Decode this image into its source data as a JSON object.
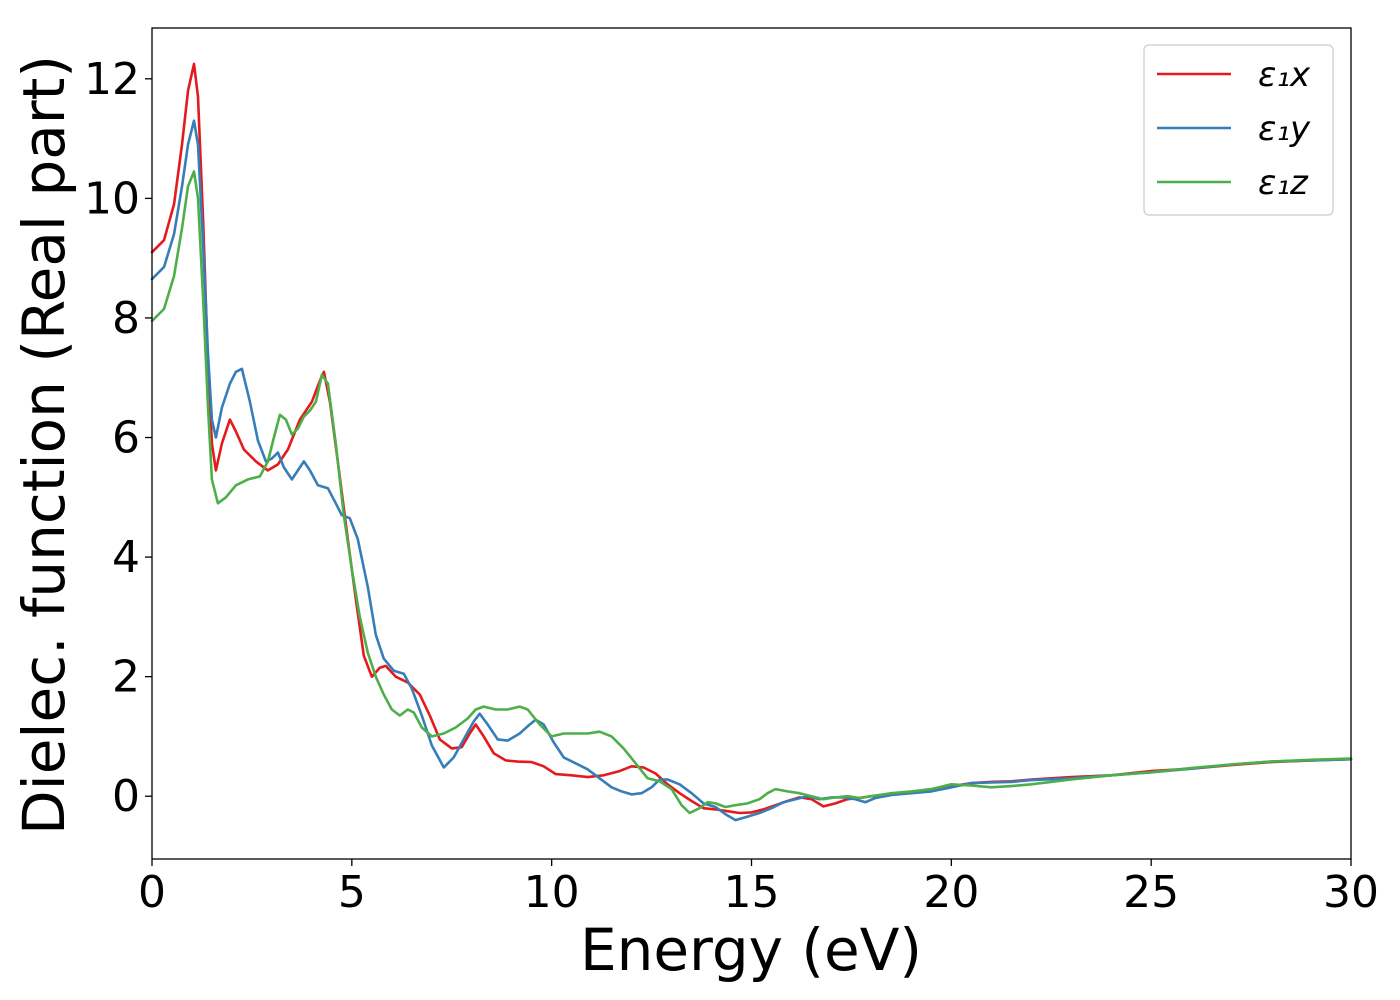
{
  "chart_data": {
    "type": "line",
    "xlabel": "Energy (eV)",
    "ylabel": "Dielec. function (Real part)",
    "xlim": [
      0,
      30
    ],
    "ylim": [
      -1.05,
      12.85
    ],
    "xticks": [
      0,
      5,
      10,
      15,
      20,
      25,
      30
    ],
    "yticks": [
      0,
      2,
      4,
      6,
      8,
      10,
      12
    ],
    "grid": false,
    "legend_position": "top-right",
    "series": [
      {
        "name": "ε₁x",
        "color": "#e41a1c",
        "points": [
          [
            0,
            9.1
          ],
          [
            0.3,
            9.3
          ],
          [
            0.55,
            9.9
          ],
          [
            0.75,
            10.9
          ],
          [
            0.9,
            11.8
          ],
          [
            1.05,
            12.25
          ],
          [
            1.15,
            11.7
          ],
          [
            1.28,
            9.6
          ],
          [
            1.4,
            7.2
          ],
          [
            1.5,
            5.9
          ],
          [
            1.6,
            5.45
          ],
          [
            1.75,
            5.9
          ],
          [
            1.95,
            6.3
          ],
          [
            2.1,
            6.1
          ],
          [
            2.3,
            5.8
          ],
          [
            2.6,
            5.6
          ],
          [
            2.9,
            5.45
          ],
          [
            3.15,
            5.55
          ],
          [
            3.4,
            5.8
          ],
          [
            3.7,
            6.3
          ],
          [
            4.0,
            6.6
          ],
          [
            4.2,
            6.95
          ],
          [
            4.3,
            7.1
          ],
          [
            4.45,
            6.6
          ],
          [
            4.65,
            5.6
          ],
          [
            4.9,
            4.3
          ],
          [
            5.1,
            3.3
          ],
          [
            5.3,
            2.35
          ],
          [
            5.5,
            2.0
          ],
          [
            5.7,
            2.15
          ],
          [
            5.85,
            2.18
          ],
          [
            6.1,
            2.0
          ],
          [
            6.4,
            1.9
          ],
          [
            6.7,
            1.7
          ],
          [
            6.95,
            1.35
          ],
          [
            7.2,
            0.95
          ],
          [
            7.5,
            0.8
          ],
          [
            7.75,
            0.82
          ],
          [
            7.95,
            1.05
          ],
          [
            8.1,
            1.2
          ],
          [
            8.3,
            1.0
          ],
          [
            8.55,
            0.72
          ],
          [
            8.85,
            0.6
          ],
          [
            9.15,
            0.58
          ],
          [
            9.5,
            0.57
          ],
          [
            9.8,
            0.5
          ],
          [
            10.1,
            0.37
          ],
          [
            10.5,
            0.35
          ],
          [
            10.9,
            0.32
          ],
          [
            11.3,
            0.35
          ],
          [
            11.7,
            0.42
          ],
          [
            12.0,
            0.5
          ],
          [
            12.3,
            0.48
          ],
          [
            12.6,
            0.38
          ],
          [
            12.9,
            0.2
          ],
          [
            13.2,
            0.05
          ],
          [
            13.5,
            -0.08
          ],
          [
            13.8,
            -0.2
          ],
          [
            14.1,
            -0.22
          ],
          [
            14.4,
            -0.25
          ],
          [
            14.7,
            -0.28
          ],
          [
            15.0,
            -0.27
          ],
          [
            15.3,
            -0.22
          ],
          [
            15.6,
            -0.15
          ],
          [
            15.9,
            -0.08
          ],
          [
            16.2,
            -0.02
          ],
          [
            16.5,
            -0.05
          ],
          [
            16.8,
            -0.17
          ],
          [
            17.1,
            -0.12
          ],
          [
            17.4,
            -0.05
          ],
          [
            17.7,
            -0.03
          ],
          [
            18.0,
            0.0
          ],
          [
            18.5,
            0.03
          ],
          [
            19.0,
            0.07
          ],
          [
            19.5,
            0.1
          ],
          [
            20.0,
            0.17
          ],
          [
            20.5,
            0.22
          ],
          [
            21.0,
            0.24
          ],
          [
            21.5,
            0.25
          ],
          [
            22.0,
            0.28
          ],
          [
            23.0,
            0.32
          ],
          [
            24.0,
            0.35
          ],
          [
            25.0,
            0.42
          ],
          [
            26.0,
            0.46
          ],
          [
            27.0,
            0.52
          ],
          [
            28.0,
            0.57
          ],
          [
            29.0,
            0.6
          ],
          [
            30,
            0.62
          ]
        ]
      },
      {
        "name": "ε₁y",
        "color": "#377eb8",
        "points": [
          [
            0,
            8.65
          ],
          [
            0.3,
            8.85
          ],
          [
            0.55,
            9.4
          ],
          [
            0.75,
            10.2
          ],
          [
            0.9,
            10.9
          ],
          [
            1.05,
            11.3
          ],
          [
            1.15,
            10.9
          ],
          [
            1.28,
            9.2
          ],
          [
            1.4,
            7.4
          ],
          [
            1.5,
            6.3
          ],
          [
            1.6,
            6.0
          ],
          [
            1.75,
            6.5
          ],
          [
            1.95,
            6.9
          ],
          [
            2.1,
            7.1
          ],
          [
            2.25,
            7.15
          ],
          [
            2.45,
            6.6
          ],
          [
            2.65,
            5.95
          ],
          [
            2.85,
            5.6
          ],
          [
            3.0,
            5.65
          ],
          [
            3.15,
            5.75
          ],
          [
            3.3,
            5.5
          ],
          [
            3.5,
            5.3
          ],
          [
            3.65,
            5.45
          ],
          [
            3.8,
            5.6
          ],
          [
            3.95,
            5.45
          ],
          [
            4.15,
            5.2
          ],
          [
            4.4,
            5.15
          ],
          [
            4.6,
            4.9
          ],
          [
            4.75,
            4.7
          ],
          [
            4.95,
            4.65
          ],
          [
            5.15,
            4.3
          ],
          [
            5.4,
            3.5
          ],
          [
            5.6,
            2.7
          ],
          [
            5.8,
            2.3
          ],
          [
            6.05,
            2.1
          ],
          [
            6.3,
            2.05
          ],
          [
            6.5,
            1.8
          ],
          [
            6.75,
            1.35
          ],
          [
            7.0,
            0.85
          ],
          [
            7.3,
            0.48
          ],
          [
            7.55,
            0.65
          ],
          [
            7.8,
            0.95
          ],
          [
            8.05,
            1.25
          ],
          [
            8.2,
            1.38
          ],
          [
            8.4,
            1.2
          ],
          [
            8.65,
            0.95
          ],
          [
            8.9,
            0.93
          ],
          [
            9.2,
            1.05
          ],
          [
            9.45,
            1.2
          ],
          [
            9.6,
            1.28
          ],
          [
            9.8,
            1.2
          ],
          [
            10.05,
            0.9
          ],
          [
            10.3,
            0.65
          ],
          [
            10.6,
            0.55
          ],
          [
            10.9,
            0.45
          ],
          [
            11.2,
            0.3
          ],
          [
            11.5,
            0.15
          ],
          [
            11.75,
            0.08
          ],
          [
            12.0,
            0.03
          ],
          [
            12.25,
            0.05
          ],
          [
            12.5,
            0.15
          ],
          [
            12.7,
            0.28
          ],
          [
            12.9,
            0.28
          ],
          [
            13.2,
            0.2
          ],
          [
            13.5,
            0.05
          ],
          [
            13.8,
            -0.12
          ],
          [
            14.1,
            -0.18
          ],
          [
            14.35,
            -0.3
          ],
          [
            14.6,
            -0.4
          ],
          [
            14.85,
            -0.35
          ],
          [
            15.2,
            -0.28
          ],
          [
            15.5,
            -0.2
          ],
          [
            15.8,
            -0.1
          ],
          [
            16.1,
            -0.05
          ],
          [
            16.4,
            0.0
          ],
          [
            16.7,
            -0.05
          ],
          [
            17.0,
            -0.02
          ],
          [
            17.3,
            -0.02
          ],
          [
            17.6,
            -0.05
          ],
          [
            17.85,
            -0.1
          ],
          [
            18.1,
            -0.03
          ],
          [
            18.5,
            0.02
          ],
          [
            19.0,
            0.05
          ],
          [
            19.5,
            0.08
          ],
          [
            20.0,
            0.15
          ],
          [
            20.5,
            0.22
          ],
          [
            21.0,
            0.23
          ],
          [
            21.5,
            0.24
          ],
          [
            22.0,
            0.27
          ],
          [
            23.0,
            0.3
          ],
          [
            24.0,
            0.35
          ],
          [
            25.0,
            0.4
          ],
          [
            26.0,
            0.46
          ],
          [
            27.0,
            0.53
          ],
          [
            28.0,
            0.58
          ],
          [
            29.0,
            0.6
          ],
          [
            30,
            0.62
          ]
        ]
      },
      {
        "name": "ε₁z",
        "color": "#4daf4a",
        "points": [
          [
            0,
            7.95
          ],
          [
            0.3,
            8.15
          ],
          [
            0.55,
            8.7
          ],
          [
            0.75,
            9.5
          ],
          [
            0.9,
            10.2
          ],
          [
            1.05,
            10.45
          ],
          [
            1.15,
            10.0
          ],
          [
            1.28,
            8.3
          ],
          [
            1.4,
            6.5
          ],
          [
            1.5,
            5.3
          ],
          [
            1.65,
            4.9
          ],
          [
            1.85,
            5.0
          ],
          [
            2.1,
            5.2
          ],
          [
            2.4,
            5.3
          ],
          [
            2.7,
            5.35
          ],
          [
            2.9,
            5.6
          ],
          [
            3.05,
            6.0
          ],
          [
            3.2,
            6.38
          ],
          [
            3.35,
            6.3
          ],
          [
            3.5,
            6.05
          ],
          [
            3.65,
            6.15
          ],
          [
            3.8,
            6.35
          ],
          [
            3.95,
            6.45
          ],
          [
            4.1,
            6.6
          ],
          [
            4.25,
            7.05
          ],
          [
            4.4,
            6.9
          ],
          [
            4.6,
            5.9
          ],
          [
            4.8,
            4.7
          ],
          [
            5.0,
            3.8
          ],
          [
            5.2,
            3.0
          ],
          [
            5.4,
            2.4
          ],
          [
            5.6,
            2.0
          ],
          [
            5.8,
            1.7
          ],
          [
            6.0,
            1.45
          ],
          [
            6.2,
            1.35
          ],
          [
            6.4,
            1.45
          ],
          [
            6.55,
            1.4
          ],
          [
            6.75,
            1.15
          ],
          [
            7.0,
            1.0
          ],
          [
            7.3,
            1.05
          ],
          [
            7.6,
            1.15
          ],
          [
            7.9,
            1.3
          ],
          [
            8.1,
            1.45
          ],
          [
            8.3,
            1.5
          ],
          [
            8.6,
            1.45
          ],
          [
            8.9,
            1.45
          ],
          [
            9.2,
            1.5
          ],
          [
            9.4,
            1.45
          ],
          [
            9.7,
            1.2
          ],
          [
            10.0,
            1.0
          ],
          [
            10.3,
            1.05
          ],
          [
            10.6,
            1.05
          ],
          [
            10.9,
            1.05
          ],
          [
            11.2,
            1.08
          ],
          [
            11.5,
            1.0
          ],
          [
            11.8,
            0.8
          ],
          [
            12.1,
            0.55
          ],
          [
            12.4,
            0.3
          ],
          [
            12.7,
            0.25
          ],
          [
            13.0,
            0.12
          ],
          [
            13.25,
            -0.15
          ],
          [
            13.45,
            -0.28
          ],
          [
            13.7,
            -0.2
          ],
          [
            13.9,
            -0.1
          ],
          [
            14.1,
            -0.12
          ],
          [
            14.35,
            -0.18
          ],
          [
            14.6,
            -0.15
          ],
          [
            14.9,
            -0.12
          ],
          [
            15.2,
            -0.05
          ],
          [
            15.4,
            0.05
          ],
          [
            15.6,
            0.12
          ],
          [
            15.9,
            0.08
          ],
          [
            16.2,
            0.05
          ],
          [
            16.5,
            0.0
          ],
          [
            16.8,
            -0.05
          ],
          [
            17.1,
            -0.02
          ],
          [
            17.4,
            0.0
          ],
          [
            17.7,
            -0.03
          ],
          [
            18.0,
            0.0
          ],
          [
            18.5,
            0.05
          ],
          [
            19.0,
            0.08
          ],
          [
            19.5,
            0.12
          ],
          [
            20.0,
            0.2
          ],
          [
            20.5,
            0.18
          ],
          [
            21.0,
            0.15
          ],
          [
            21.5,
            0.17
          ],
          [
            22.0,
            0.2
          ],
          [
            23.0,
            0.28
          ],
          [
            24.0,
            0.35
          ],
          [
            25.0,
            0.4
          ],
          [
            26.0,
            0.47
          ],
          [
            27.0,
            0.53
          ],
          [
            28.0,
            0.58
          ],
          [
            29.0,
            0.61
          ],
          [
            30,
            0.63
          ]
        ]
      }
    ]
  }
}
